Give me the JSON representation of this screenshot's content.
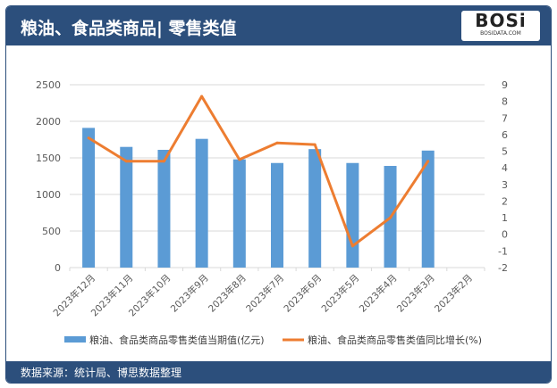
{
  "header": {
    "title": "粮油、食品类商品| 零售类值",
    "logo": "BOSi",
    "logo_sub": "BOSIDATA.COM"
  },
  "footer": {
    "source": "数据来源：统计局、博思数据整理"
  },
  "colors": {
    "bar": "#5b9bd5",
    "line": "#ed7d31",
    "header": "#2c4f7c"
  },
  "chart_data": {
    "type": "bar+line",
    "categories": [
      "2023年12月",
      "2023年11月",
      "2023年10月",
      "2023年9月",
      "2023年8月",
      "2023年7月",
      "2023年6月",
      "2023年5月",
      "2023年4月",
      "2023年3月",
      "2023年2月"
    ],
    "series": [
      {
        "name": "粮油、食品类商品零售类值当期值(亿元)",
        "type": "bar",
        "axis": "left",
        "values": [
          1910,
          1650,
          1610,
          1760,
          1480,
          1430,
          1620,
          1430,
          1390,
          1600,
          null
        ]
      },
      {
        "name": "粮油、食品类商品零售类值同比增长(%)",
        "type": "line",
        "axis": "right",
        "values": [
          5.8,
          4.4,
          4.4,
          8.3,
          4.5,
          5.5,
          5.4,
          -0.7,
          1.0,
          4.4,
          null
        ]
      }
    ],
    "y_left": {
      "range": [
        0,
        2500
      ],
      "ticks": [
        0,
        500,
        1000,
        1500,
        2000,
        2500
      ]
    },
    "y_right": {
      "range": [
        -2,
        9
      ],
      "ticks": [
        -2,
        -1,
        0,
        1,
        2,
        3,
        4,
        5,
        6,
        7,
        8,
        9
      ]
    },
    "grid": true,
    "legend": "bottom"
  }
}
